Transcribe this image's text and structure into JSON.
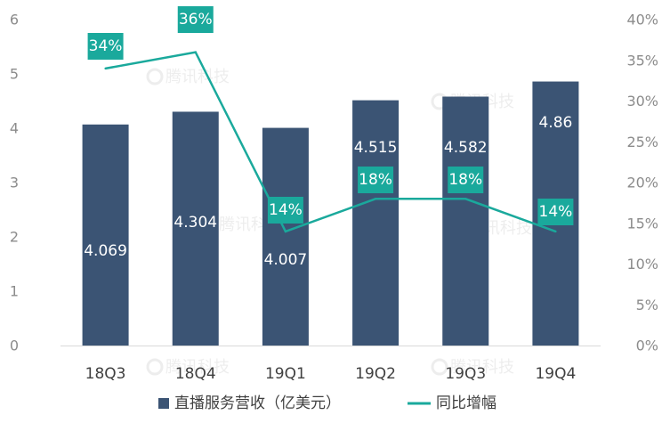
{
  "chart_data": {
    "type": "bar",
    "categories": [
      "18Q3",
      "18Q4",
      "19Q1",
      "19Q2",
      "19Q3",
      "19Q4"
    ],
    "series": [
      {
        "name": "直播服务营收（亿美元）",
        "type": "bar",
        "axis": "left",
        "values": [
          4.069,
          4.304,
          4.007,
          4.515,
          4.582,
          4.86
        ],
        "labels": [
          "4.069",
          "4.304",
          "4.007",
          "4.515",
          "4.582",
          "4.86"
        ],
        "color": "#3b5474"
      },
      {
        "name": "同比增幅",
        "type": "line",
        "axis": "right",
        "values": [
          34,
          36,
          14,
          18,
          18,
          14
        ],
        "labels": [
          "34%",
          "36%",
          "14%",
          "18%",
          "18%",
          "14%"
        ],
        "color": "#1aa99c"
      }
    ],
    "y_left": {
      "range": [
        0,
        6
      ],
      "ticks": [
        "0",
        "1",
        "2",
        "3",
        "4",
        "5",
        "6"
      ]
    },
    "y_right": {
      "range": [
        0,
        40
      ],
      "ticks": [
        "0%",
        "5%",
        "10%",
        "15%",
        "20%",
        "25%",
        "30%",
        "35%",
        "40%"
      ]
    },
    "grid": false,
    "legend": "bottom"
  },
  "watermark": "腾讯科技"
}
